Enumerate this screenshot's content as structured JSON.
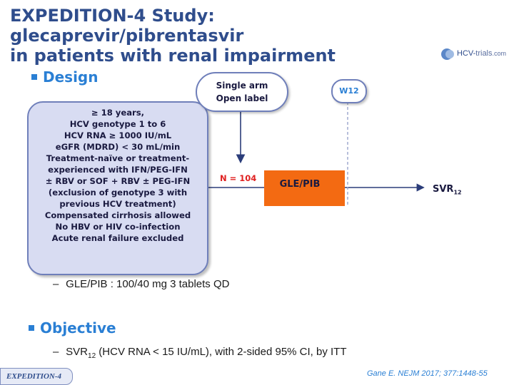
{
  "title": {
    "line1": "EXPEDITION-4 Study: glecaprevir/pibrentasvir",
    "line2": "in patients with renal impairment"
  },
  "logo": {
    "main": "HCV-",
    "suffix": "trials",
    "tld": ".com"
  },
  "design": {
    "label": "Design",
    "criteria": [
      "≥ 18 years,",
      "HCV genotype 1 to 6",
      "HCV RNA ≥ 1000 IU/mL",
      "eGFR (MDRD) < 30 mL/min",
      "Treatment-naïve or treatment-",
      "experienced with IFN/PEG-IFN",
      "± RBV or SOF + RBV ± PEG-IFN",
      "(exclusion of genotype 3 with",
      "previous HCV treatment)",
      "Compensated cirrhosis allowed",
      "No HBV or HIV co-infection",
      "Acute renal failure excluded"
    ],
    "single_arm": {
      "line1": "Single arm",
      "line2": "Open label"
    },
    "week_label": "W12",
    "n_label": "N = 104",
    "treatment_label": "GLE/PIB",
    "outcome": {
      "main": "SVR",
      "sub": "12"
    },
    "dose_note": "GLE/PIB : 100/40 mg 3 tablets QD"
  },
  "objective": {
    "label": "Objective",
    "endpoint_main": "SVR",
    "endpoint_sub": "12",
    "endpoint_rest": " (HCV RNA < 15 IU/mL), with 2-sided 95% CI, by ITT"
  },
  "footer": {
    "tag": "EXPEDITION-4",
    "citation": "Gane E. NEJM 2017; 377:1448-55"
  },
  "colors": {
    "title": "#2f4d8c",
    "accent": "#2a7fd4",
    "treatment_box": "#f36a12",
    "criteria_fill": "#d8dcf2",
    "n_label": "#e02020"
  }
}
